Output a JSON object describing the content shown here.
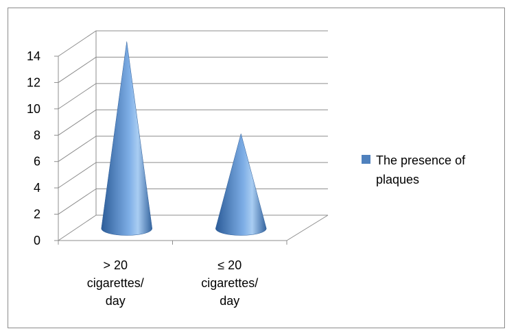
{
  "chart_data": {
    "type": "bar",
    "style": "3d-cone",
    "categories": [
      [
        "> 20",
        "cigarettes/",
        "day"
      ],
      [
        "≤ 20",
        "cigarettes/",
        "day"
      ]
    ],
    "series": [
      {
        "name": "The presence of plaques",
        "values": [
          14,
          7
        ]
      }
    ],
    "ylim": [
      0,
      14
    ],
    "yticks": [
      0,
      2,
      4,
      6,
      8,
      10,
      12,
      14
    ],
    "grid": true,
    "legend": {
      "placement": "right",
      "label_lines": [
        "The presence of",
        "plaques"
      ]
    },
    "colors": {
      "series": "#4f81bd",
      "series_dark": "#2c5c98",
      "series_light": "#9fc3ec",
      "grid": "#8c8c8c"
    }
  }
}
